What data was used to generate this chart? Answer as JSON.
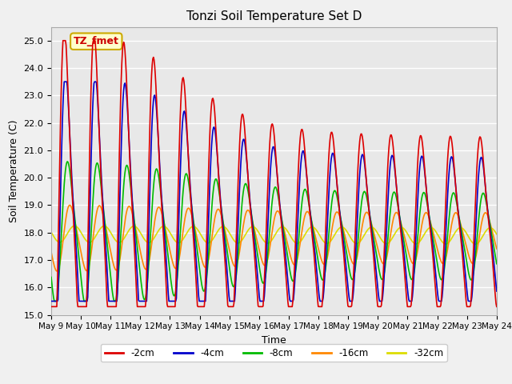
{
  "title": "Tonzi Soil Temperature Set D",
  "xlabel": "Time",
  "ylabel": "Soil Temperature (C)",
  "ylim": [
    15.0,
    25.5
  ],
  "yticks": [
    15.0,
    16.0,
    17.0,
    18.0,
    19.0,
    20.0,
    21.0,
    22.0,
    23.0,
    24.0,
    25.0
  ],
  "x_labels": [
    "May 9",
    "May 10",
    "May 11",
    "May 12",
    "May 13",
    "May 14",
    "May 15",
    "May 16",
    "May 17",
    "May 18",
    "May 19",
    "May 20",
    "May 21",
    "May 22",
    "May 23",
    "May 24"
  ],
  "annotation_text": "TZ_fmet",
  "annotation_color": "#cc0000",
  "annotation_bg": "#ffffcc",
  "annotation_border": "#ccaa00",
  "lines": {
    "-2cm": {
      "color": "#dd0000",
      "lw": 1.2
    },
    "-4cm": {
      "color": "#0000cc",
      "lw": 1.2
    },
    "-8cm": {
      "color": "#00bb00",
      "lw": 1.2
    },
    "-16cm": {
      "color": "#ff8800",
      "lw": 1.2
    },
    "-32cm": {
      "color": "#dddd00",
      "lw": 1.2
    }
  },
  "bg_color": "#e8e8e8",
  "grid_color": "#ffffff",
  "n_points": 720
}
